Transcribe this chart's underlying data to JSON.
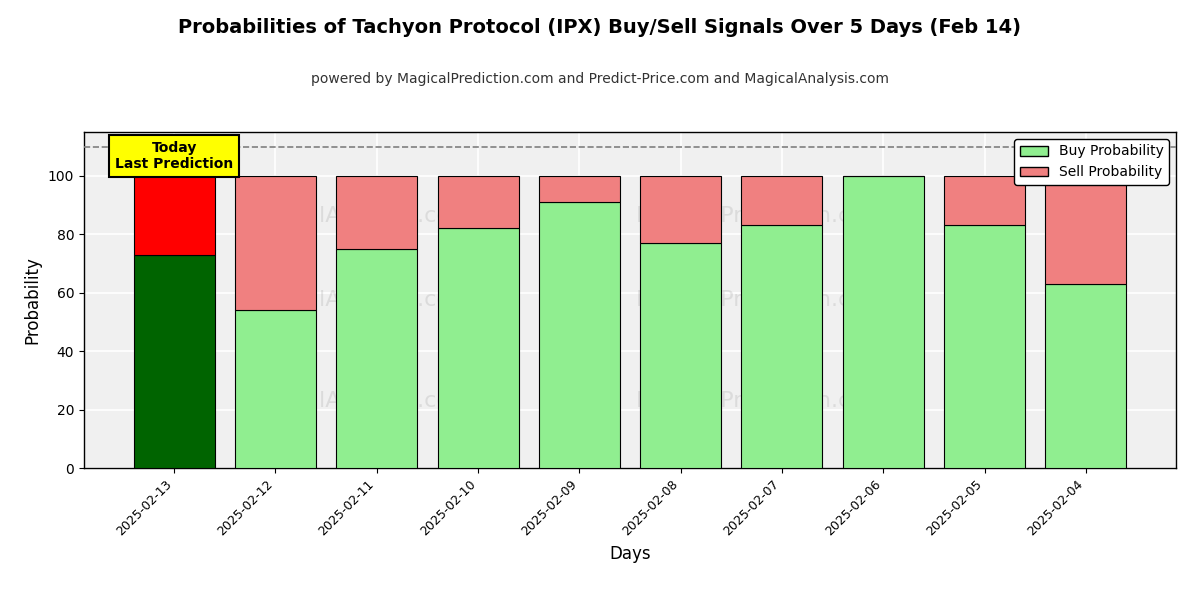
{
  "title": "Probabilities of Tachyon Protocol (IPX) Buy/Sell Signals Over 5 Days (Feb 14)",
  "subtitle": "powered by MagicalPrediction.com and Predict-Price.com and MagicalAnalysis.com",
  "xlabel": "Days",
  "ylabel": "Probability",
  "dates": [
    "2025-02-13",
    "2025-02-12",
    "2025-02-11",
    "2025-02-10",
    "2025-02-09",
    "2025-02-08",
    "2025-02-07",
    "2025-02-06",
    "2025-02-05",
    "2025-02-04"
  ],
  "buy_values": [
    73,
    54,
    75,
    82,
    91,
    77,
    83,
    100,
    83,
    63
  ],
  "sell_values": [
    27,
    46,
    25,
    18,
    9,
    23,
    17,
    0,
    17,
    37
  ],
  "buy_color_today": "#006400",
  "sell_color_today": "#ff0000",
  "buy_color_normal": "#90EE90",
  "sell_color_normal": "#F08080",
  "bar_edge_color": "#000000",
  "bar_edge_width": 0.8,
  "today_annotation": "Today\nLast Prediction",
  "today_annotation_bg": "#ffff00",
  "today_annotation_border": "#000000",
  "dashed_line_y": 110,
  "dashed_line_color": "#808080",
  "ylim": [
    0,
    115
  ],
  "yticks": [
    0,
    20,
    40,
    60,
    80,
    100
  ],
  "grid_color": "#ffffff",
  "bg_color": "#f0f0f0",
  "legend_buy_label": "Buy Probability",
  "legend_sell_label": "Sell Probability"
}
